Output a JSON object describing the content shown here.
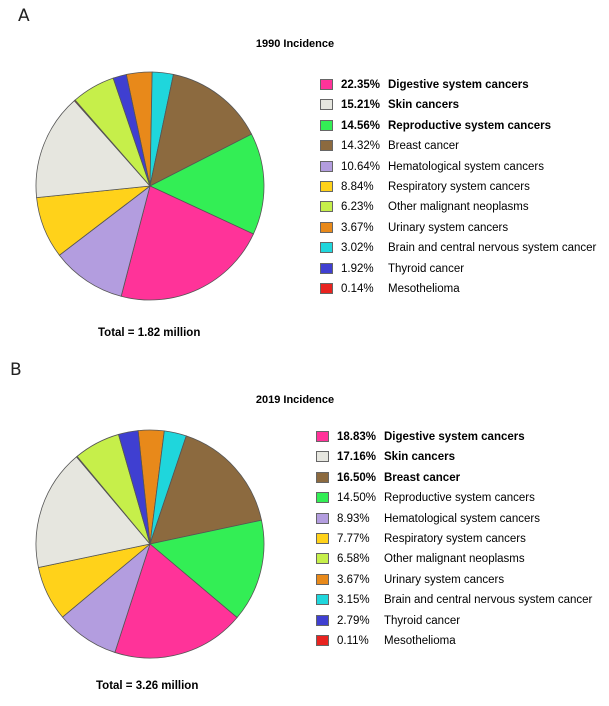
{
  "panels": [
    {
      "letter": "A",
      "title": "1990 Incidence",
      "total": "Total = 1.82 million",
      "chart_data": {
        "type": "pie",
        "title": "1990 Incidence",
        "start_angle_deg": -12,
        "slices": [
          {
            "label": "Digestive system cancers",
            "pct_text": "22.35%",
            "value": 22.35,
            "color": "#ff3399",
            "bold": true
          },
          {
            "label": "Skin cancers",
            "pct_text": "15.21%",
            "value": 15.21,
            "color": "#e6e6df",
            "bold": true
          },
          {
            "label": "Reproductive system cancers",
            "pct_text": "14.56%",
            "value": 14.56,
            "color": "#33ee55",
            "bold": true
          },
          {
            "label": "Breast cancer",
            "pct_text": "14.32%",
            "value": 14.32,
            "color": "#8c6a3f",
            "bold": false
          },
          {
            "label": "Hematological system cancers",
            "pct_text": "10.64%",
            "value": 10.64,
            "color": "#b39ddf",
            "bold": false
          },
          {
            "label": "Respiratory system cancers",
            "pct_text": "8.84%",
            "value": 8.84,
            "color": "#ffd21a",
            "bold": false
          },
          {
            "label": "Other malignant neoplasms",
            "pct_text": "6.23%",
            "value": 6.23,
            "color": "#c6ef4a",
            "bold": false
          },
          {
            "label": "Urinary system cancers",
            "pct_text": "3.67%",
            "value": 3.67,
            "color": "#e8891a",
            "bold": false
          },
          {
            "label": "Brain and central nervous system cancer",
            "pct_text": "3.02%",
            "value": 3.02,
            "color": "#1fd6dc",
            "bold": false
          },
          {
            "label": "Thyroid cancer",
            "pct_text": "1.92%",
            "value": 1.92,
            "color": "#3f3fd1",
            "bold": false
          },
          {
            "label": "Mesothelioma",
            "pct_text": "0.14%",
            "value": 0.14,
            "color": "#e8231f",
            "bold": false
          }
        ],
        "pie_order": [
          "Urinary system cancers",
          "Brain and central nervous system cancer",
          "Breast cancer",
          "Reproductive system cancers",
          "Digestive system cancers",
          "Hematological system cancers",
          "Respiratory system cancers",
          "Skin cancers",
          "Mesothelioma",
          "Other malignant neoplasms",
          "Thyroid cancer"
        ]
      }
    },
    {
      "letter": "B",
      "title": "2019 Incidence",
      "total": "Total = 3.26 million",
      "chart_data": {
        "type": "pie",
        "title": "2019 Incidence",
        "start_angle_deg": -6,
        "slices": [
          {
            "label": "Digestive system cancers",
            "pct_text": "18.83%",
            "value": 18.83,
            "color": "#ff3399",
            "bold": true
          },
          {
            "label": "Skin cancers",
            "pct_text": "17.16%",
            "value": 17.16,
            "color": "#e6e6df",
            "bold": true
          },
          {
            "label": "Breast cancer",
            "pct_text": "16.50%",
            "value": 16.5,
            "color": "#8c6a3f",
            "bold": true
          },
          {
            "label": "Reproductive system cancers",
            "pct_text": "14.50%",
            "value": 14.5,
            "color": "#33ee55",
            "bold": false
          },
          {
            "label": "Hematological system cancers",
            "pct_text": "8.93%",
            "value": 8.93,
            "color": "#b39ddf",
            "bold": false
          },
          {
            "label": "Respiratory system cancers",
            "pct_text": "7.77%",
            "value": 7.77,
            "color": "#ffd21a",
            "bold": false
          },
          {
            "label": "Other malignant neoplasms",
            "pct_text": "6.58%",
            "value": 6.58,
            "color": "#c6ef4a",
            "bold": false
          },
          {
            "label": "Urinary system cancers",
            "pct_text": "3.67%",
            "value": 3.67,
            "color": "#e8891a",
            "bold": false
          },
          {
            "label": "Brain and central nervous system cancer",
            "pct_text": "3.15%",
            "value": 3.15,
            "color": "#1fd6dc",
            "bold": false
          },
          {
            "label": "Thyroid cancer",
            "pct_text": "2.79%",
            "value": 2.79,
            "color": "#3f3fd1",
            "bold": false
          },
          {
            "label": "Mesothelioma",
            "pct_text": "0.11%",
            "value": 0.11,
            "color": "#e8231f",
            "bold": false
          }
        ],
        "pie_order": [
          "Urinary system cancers",
          "Brain and central nervous system cancer",
          "Breast cancer",
          "Reproductive system cancers",
          "Digestive system cancers",
          "Hematological system cancers",
          "Respiratory system cancers",
          "Skin cancers",
          "Mesothelioma",
          "Other malignant neoplasms",
          "Thyroid cancer"
        ]
      }
    }
  ]
}
